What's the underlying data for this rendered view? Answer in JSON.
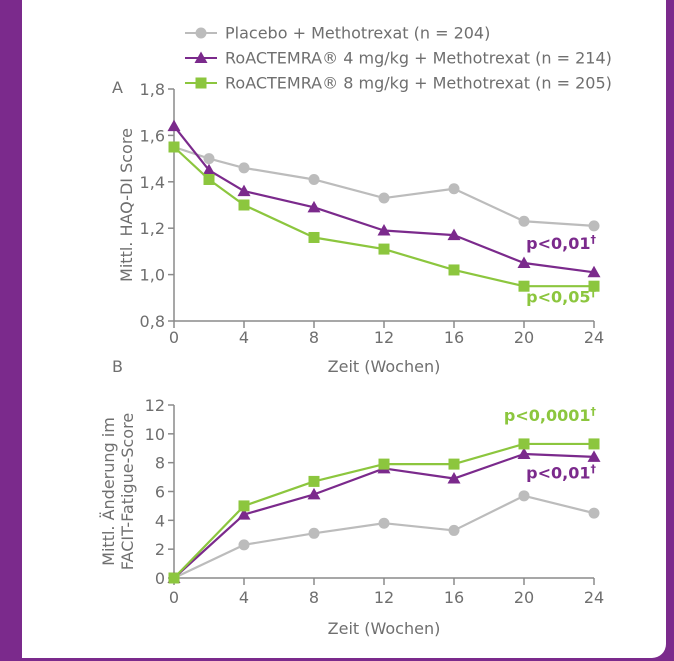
{
  "colors": {
    "background": "#7b2a8c",
    "axis": "#8a8a8a",
    "text": "#6f6f6f",
    "placebo": "#bcbcbc",
    "mg4": "#7b2a8c",
    "mg8": "#8cc63e"
  },
  "legend": [
    {
      "label": "Placebo + Methotrexat (n = 204)",
      "marker": "circle",
      "color": "#bcbcbc"
    },
    {
      "label": "RoACTEMRA® 4 mg/kg + Methotrexat (n = 214)",
      "marker": "triangle",
      "color": "#7b2a8c"
    },
    {
      "label": "RoACTEMRA® 8 mg/kg + Methotrexat (n = 205)",
      "marker": "square",
      "color": "#8cc63e"
    }
  ],
  "chart_data": [
    {
      "type": "line",
      "panel_label": "A",
      "xlabel": "Zeit (Wochen)",
      "ylabel": "Mittl. HAQ-DI Score",
      "xlim": [
        0,
        24
      ],
      "ylim": [
        0.8,
        1.8
      ],
      "xticks": [
        0,
        4,
        8,
        12,
        16,
        20,
        24
      ],
      "yticks": [
        0.8,
        1.0,
        1.2,
        1.4,
        1.6,
        1.8
      ],
      "ytick_labels": [
        "0,8",
        "1,0",
        "1,2",
        "1,4",
        "1,6",
        "1,8"
      ],
      "grid": false,
      "series": [
        {
          "name": "Placebo + Methotrexat (n = 204)",
          "marker": "circle",
          "color": "#bcbcbc",
          "x": [
            0,
            2,
            4,
            8,
            12,
            16,
            20,
            24
          ],
          "values": [
            1.55,
            1.5,
            1.46,
            1.41,
            1.33,
            1.37,
            1.23,
            1.21
          ]
        },
        {
          "name": "RoACTEMRA® 4 mg/kg + Methotrexat (n = 214)",
          "marker": "triangle",
          "color": "#7b2a8c",
          "x": [
            0,
            2,
            4,
            8,
            12,
            16,
            20,
            24
          ],
          "values": [
            1.64,
            1.45,
            1.36,
            1.29,
            1.19,
            1.17,
            1.05,
            1.01
          ]
        },
        {
          "name": "RoACTEMRA® 8 mg/kg + Methotrexat (n = 205)",
          "marker": "square",
          "color": "#8cc63e",
          "x": [
            0,
            2,
            4,
            8,
            12,
            16,
            20,
            24
          ],
          "values": [
            1.55,
            1.41,
            1.3,
            1.16,
            1.11,
            1.02,
            0.95,
            0.95
          ]
        }
      ],
      "annotations": [
        {
          "text": "p<0,01",
          "mark": "†",
          "color": "#7b2a8c",
          "x": 24,
          "y": 1.11
        },
        {
          "text": "p<0,05",
          "mark": "†",
          "color": "#8cc63e",
          "x": 24,
          "y": 0.88
        }
      ]
    },
    {
      "type": "line",
      "panel_label": "B",
      "xlabel": "Zeit (Wochen)",
      "ylabel": [
        "Mittl. Änderung im",
        "FACIT-Fatigue-Score"
      ],
      "xlim": [
        0,
        24
      ],
      "ylim": [
        0,
        12
      ],
      "xticks": [
        0,
        4,
        8,
        12,
        16,
        20,
        24
      ],
      "yticks": [
        0,
        2,
        4,
        6,
        8,
        10,
        12
      ],
      "ytick_labels": [
        "0",
        "2",
        "4",
        "6",
        "8",
        "10",
        "12"
      ],
      "grid": false,
      "series": [
        {
          "name": "Placebo + Methotrexat (n = 204)",
          "marker": "circle",
          "color": "#bcbcbc",
          "x": [
            0,
            4,
            8,
            12,
            16,
            20,
            24
          ],
          "values": [
            0,
            2.3,
            3.1,
            3.8,
            3.3,
            5.7,
            4.5
          ]
        },
        {
          "name": "RoACTEMRA® 4 mg/kg + Methotrexat (n = 214)",
          "marker": "triangle",
          "color": "#7b2a8c",
          "x": [
            0,
            4,
            8,
            12,
            16,
            20,
            24
          ],
          "values": [
            0,
            4.4,
            5.8,
            7.6,
            6.9,
            8.6,
            8.4
          ]
        },
        {
          "name": "RoACTEMRA® 8 mg/kg + Methotrexat (n = 205)",
          "marker": "square",
          "color": "#8cc63e",
          "x": [
            0,
            4,
            8,
            12,
            16,
            20,
            24
          ],
          "values": [
            0,
            5.0,
            6.7,
            7.9,
            7.9,
            9.3,
            9.3
          ]
        }
      ],
      "annotations": [
        {
          "text": "p<0,0001",
          "mark": "†",
          "color": "#8cc63e",
          "x": 24,
          "y": 10.9
        },
        {
          "text": "p<0,01",
          "mark": "†",
          "color": "#7b2a8c",
          "x": 24,
          "y": 6.9
        }
      ]
    }
  ]
}
